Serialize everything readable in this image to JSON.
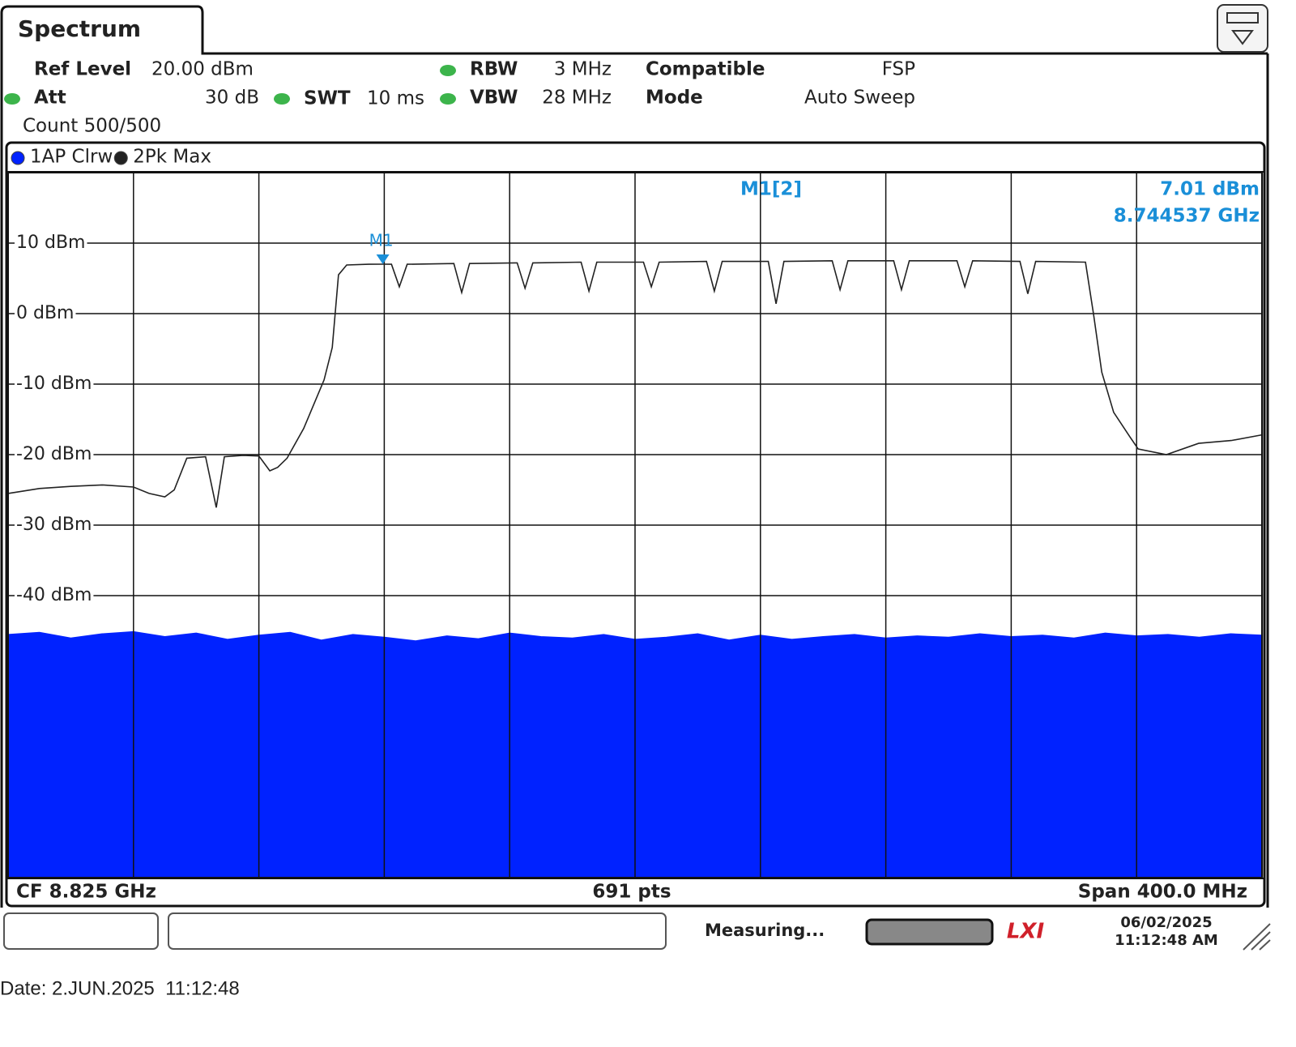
{
  "header": {
    "tab": "Spectrum",
    "ref_level_label": "Ref Level",
    "ref_level": "20.00 dBm",
    "att_label": "Att",
    "att": "30 dB",
    "swt_label": "SWT",
    "swt": "10 ms",
    "rbw_label": "RBW",
    "rbw": "3 MHz",
    "vbw_label": "VBW",
    "vbw": "28 MHz",
    "compatible_label": "Compatible",
    "compatible": "FSP",
    "mode_label": "Mode",
    "mode": "Auto Sweep",
    "count": "Count 500/500"
  },
  "chart_data": {
    "type": "line",
    "xlim": [
      8.625,
      9.025
    ],
    "ylim": [
      -80,
      20
    ],
    "yticks": [
      {
        "value": 10,
        "label": "10 dBm"
      },
      {
        "value": 0,
        "label": "0 dBm"
      },
      {
        "value": -10,
        "label": "-10 dBm"
      },
      {
        "value": -20,
        "label": "-20 dBm"
      },
      {
        "value": -30,
        "label": "-30 dBm"
      },
      {
        "value": -40,
        "label": "-40 dBm"
      }
    ],
    "grid": true,
    "series": [
      {
        "name": "1AP Clrw",
        "color": "#0022ff",
        "fill": true,
        "x": [
          8.625,
          8.635,
          8.645,
          8.655,
          8.665,
          8.675,
          8.685,
          8.695,
          8.705,
          8.715,
          8.725,
          8.735,
          8.745,
          8.755,
          8.765,
          8.775,
          8.785,
          8.795,
          8.805,
          8.815,
          8.825,
          8.835,
          8.845,
          8.855,
          8.865,
          8.875,
          8.885,
          8.895,
          8.905,
          8.915,
          8.925,
          8.935,
          8.945,
          8.955,
          8.965,
          8.975,
          8.985,
          8.995,
          9.005,
          9.015,
          9.025
        ],
        "values": [
          -45.5,
          -45.2,
          -46,
          -45.4,
          -45.1,
          -45.8,
          -45.3,
          -46.2,
          -45.6,
          -45.2,
          -46.3,
          -45.5,
          -45.9,
          -46.4,
          -45.7,
          -46.1,
          -45.3,
          -45.8,
          -46,
          -45.5,
          -46.2,
          -45.9,
          -45.4,
          -46.3,
          -45.6,
          -46.2,
          -45.8,
          -45.5,
          -46,
          -45.7,
          -45.9,
          -45.4,
          -45.8,
          -45.6,
          -46,
          -45.3,
          -45.7,
          -45.5,
          -45.9,
          -45.4,
          -45.6
        ]
      },
      {
        "name": "2Pk Max",
        "color": "#222222",
        "fill": false,
        "x": [
          8.625,
          8.635,
          8.645,
          8.655,
          8.665,
          8.67,
          8.675,
          8.678,
          8.682,
          8.688,
          8.6914,
          8.694,
          8.7,
          8.705,
          8.7085,
          8.711,
          8.714,
          8.7193,
          8.7258,
          8.7284,
          8.7304,
          8.733,
          8.74,
          8.744537,
          8.7473,
          8.7498,
          8.7523,
          8.7672,
          8.7697,
          8.7722,
          8.7874,
          8.7899,
          8.7924,
          8.8078,
          8.8103,
          8.8128,
          8.8277,
          8.8302,
          8.8327,
          8.8478,
          8.8503,
          8.8528,
          8.8675,
          8.87,
          8.8725,
          8.8879,
          8.8904,
          8.8929,
          8.9075,
          8.91,
          8.9125,
          8.9277,
          8.9302,
          8.9327,
          8.9478,
          8.9503,
          8.9528,
          8.9687,
          8.9713,
          8.9739,
          8.9777,
          8.9829,
          8.9855,
          8.9945,
          9.0048,
          9.0152,
          9.025
        ],
        "values": [
          -25.5,
          -24.8,
          -24.5,
          -24.3,
          -24.6,
          -25.5,
          -26,
          -25,
          -20.5,
          -20.3,
          -27.5,
          -20.3,
          -20.1,
          -20.2,
          -22.3,
          -21.8,
          -20.5,
          -16.3,
          -9.4,
          -4.8,
          5.5,
          6.9,
          7.0,
          7.01,
          7.0,
          3.8,
          7.0,
          7.1,
          3.0,
          7.1,
          7.2,
          3.6,
          7.2,
          7.3,
          3.2,
          7.3,
          7.3,
          3.8,
          7.3,
          7.4,
          3.2,
          7.4,
          7.4,
          1.4,
          7.4,
          7.5,
          3.4,
          7.5,
          7.5,
          3.4,
          7.5,
          7.5,
          3.8,
          7.5,
          7.4,
          2.8,
          7.4,
          7.3,
          -0.2,
          -8.3,
          -14,
          -17.5,
          -19.2,
          -20,
          -18.4,
          -18,
          -17.2
        ]
      }
    ],
    "markers": [
      {
        "name": "M1",
        "readout_name": "M1[2]",
        "x": 8.744537,
        "y": 7.01,
        "y_label": "7.01 dBm",
        "x_label": "8.744537 GHz",
        "color": "#1a8fd8"
      }
    ],
    "bottom": {
      "left": "CF 8.825 GHz",
      "center": "691 pts",
      "right": "Span 400.0 MHz"
    }
  },
  "status": {
    "state": "Measuring...",
    "date": "06/02/2025",
    "time": "11:12:48 AM"
  },
  "footer": "Date: 2.JUN.2025  11:12:48"
}
